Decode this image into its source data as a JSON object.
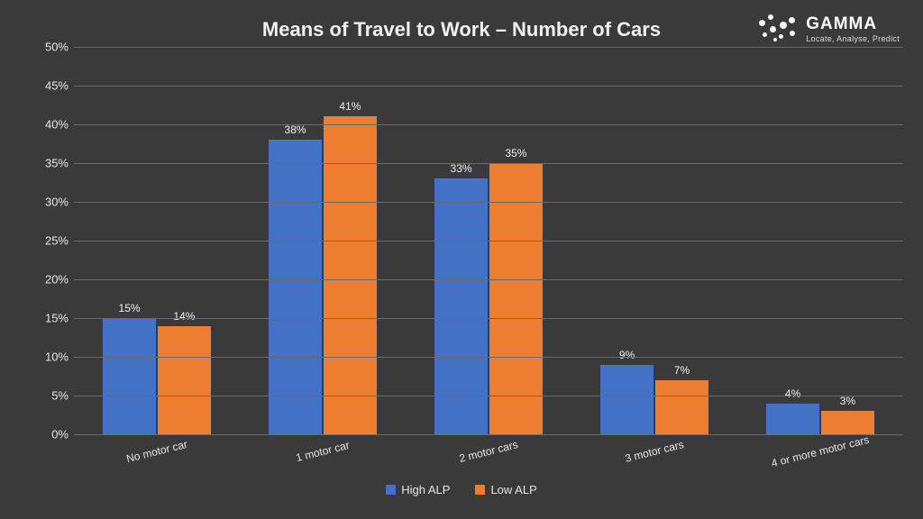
{
  "title": "Means of Travel to Work – Number of Cars",
  "brand": {
    "name": "GAMMA",
    "tagline": "Locate, Analyse, Predict"
  },
  "chart": {
    "type": "bar",
    "background_color": "#3a3a3a",
    "grid_color": "#6a6a6a",
    "text_color": "#e8e8e8",
    "title_fontsize": 22,
    "label_fontsize": 13,
    "data_label_fontsize": 12,
    "bar_width_pct": 32,
    "y": {
      "min": 0,
      "max": 50,
      "step": 5,
      "suffix": "%"
    },
    "categories": [
      "No motor car",
      "1 motor car",
      "2 motor cars",
      "3 motor cars",
      "4 or more motor cars"
    ],
    "series": [
      {
        "name": "High ALP",
        "color": "#4472c4",
        "values": [
          15,
          38,
          33,
          9,
          4
        ]
      },
      {
        "name": "Low ALP",
        "color": "#ed7d31",
        "values": [
          14,
          41,
          35,
          7,
          3
        ]
      }
    ]
  }
}
